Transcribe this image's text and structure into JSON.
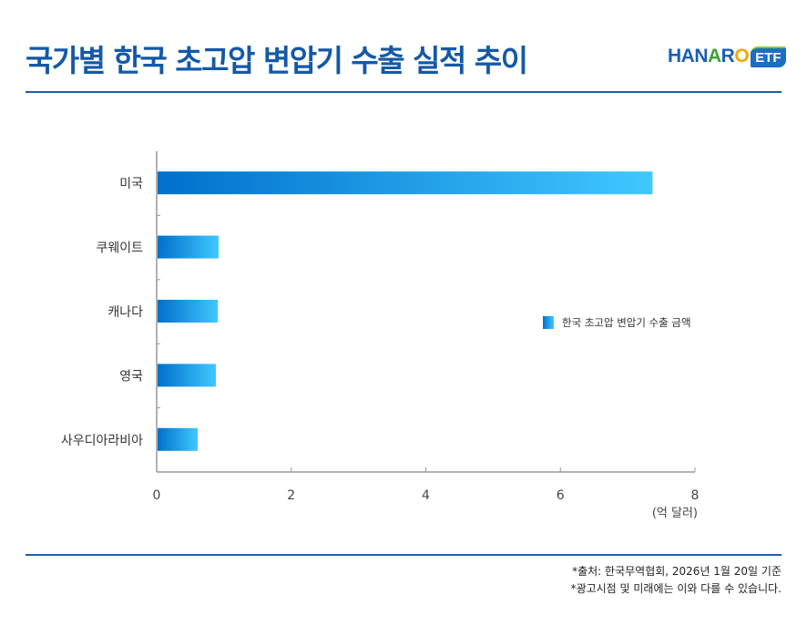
{
  "header": {
    "title": "국가별 한국 초고압 변압기 수출 실적 추이",
    "logo_text": "HANARO",
    "logo_badge": "ETF"
  },
  "colors": {
    "title": "#1459a8",
    "bar_start": "#0070cc",
    "bar_end": "#40c8ff",
    "rule": "#1e5fa8"
  },
  "chart_data": {
    "type": "bar",
    "orientation": "horizontal",
    "categories": [
      "미국",
      "쿠웨이트",
      "캐나다",
      "영국",
      "사우디아라비아"
    ],
    "series": [
      {
        "name": "한국 초고압 변압기 수출 금액",
        "values": [
          7.37,
          0.92,
          0.91,
          0.88,
          0.61
        ]
      }
    ],
    "xlim": [
      0,
      8
    ],
    "xticks": [
      "0",
      "2",
      "4",
      "6",
      "8"
    ],
    "xlabel": "(억 달러)",
    "grid": false,
    "legend_placement": "right"
  },
  "footer": {
    "source": "*출처: 한국무역협회, 2026년 1월 20일 기준",
    "disclaimer": "*광고시점 및 미래에는 이와 다를 수 있습니다."
  }
}
